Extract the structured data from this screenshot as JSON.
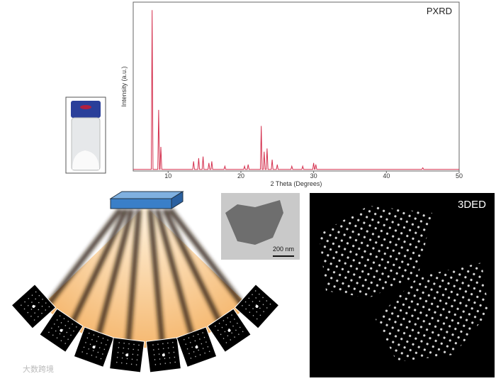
{
  "chart_data": {
    "type": "line",
    "title": "PXRD",
    "x_label": "2 Theta (Degrees)",
    "y_label": "Intensity (a.u.)",
    "xlim": [
      5.2,
      50
    ],
    "ylim": [
      0,
      105
    ],
    "xticks": [
      10,
      20,
      30,
      40,
      50
    ],
    "series": [
      {
        "color": "#d4304e",
        "x": [
          5.2,
          7.68,
          7.8,
          7.92,
          8.58,
          8.7,
          8.82,
          8.88,
          9.0,
          9.12,
          13.38,
          13.5,
          13.62,
          14.08,
          14.2,
          14.32,
          14.68,
          14.8,
          14.92,
          15.48,
          15.6,
          15.72,
          15.88,
          16.0,
          16.12,
          17.68,
          17.8,
          17.92,
          20.38,
          20.5,
          20.62,
          20.88,
          21.0,
          21.12,
          22.68,
          22.8,
          22.92,
          23.08,
          23.2,
          23.32,
          23.48,
          23.6,
          23.72,
          24.18,
          24.3,
          24.42,
          24.88,
          25.0,
          25.12,
          26.88,
          27.0,
          27.12,
          28.38,
          28.5,
          28.62,
          29.88,
          30.0,
          30.12,
          30.18,
          30.3,
          30.42,
          44.88,
          45.0,
          45.12,
          50
        ],
        "values": [
          1,
          1,
          100,
          1,
          1,
          38,
          1,
          1,
          15,
          1,
          1,
          6,
          1,
          1,
          8,
          1,
          1,
          9,
          1,
          1,
          5,
          1,
          1,
          6,
          1,
          1,
          3,
          1,
          1,
          3,
          1,
          1,
          4,
          1,
          1,
          28,
          1,
          1,
          12,
          1,
          1,
          14,
          1,
          1,
          7,
          1,
          1,
          4,
          1,
          1,
          3,
          1,
          1,
          3,
          1,
          1,
          5,
          1,
          1,
          4,
          1,
          1,
          2,
          1,
          1
        ]
      }
    ]
  },
  "tem_scale": "200 nm",
  "ded_label": "3DED",
  "watermark": "大数跨境"
}
